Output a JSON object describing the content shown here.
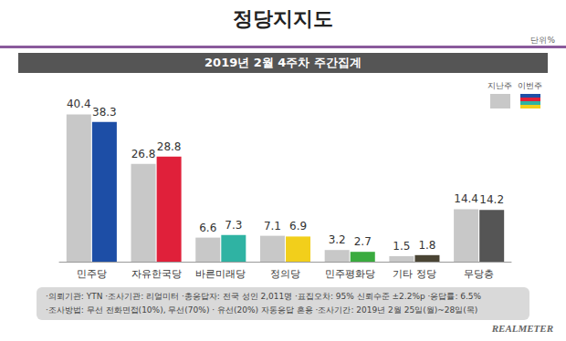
{
  "header": {
    "title": "정당지지도",
    "unit": "단위%",
    "band": "2019년 2월 4주차 주간집계"
  },
  "chart_data": {
    "type": "bar",
    "categories": [
      "민주당",
      "자유한국당",
      "바른미래당",
      "정의당",
      "민주평화당",
      "기타 정당",
      "무당층"
    ],
    "series": [
      {
        "name": "지난주",
        "color": "#c8c8c8",
        "values": [
          40.4,
          26.8,
          6.6,
          7.1,
          3.2,
          1.5,
          14.4
        ]
      },
      {
        "name": "이번주",
        "colors": [
          "#1d4ea6",
          "#e0203a",
          "#2fb3a3",
          "#f2cf1b",
          "#3aab3f",
          "#4a4434",
          "#555555"
        ],
        "values": [
          38.3,
          28.8,
          7.3,
          6.9,
          2.7,
          1.8,
          14.2
        ]
      }
    ],
    "ylim": [
      0,
      50
    ],
    "yticks": [
      0,
      50
    ],
    "grid": false,
    "data_labels": true,
    "tick_labels": "x",
    "legend": "upper right"
  },
  "footer": {
    "lines": [
      "·의뢰기관: YTN  ·조사기관: 리얼미터  ·총응답자: 전국 성인 2,011명  ·표집오차: 95% 신뢰수준 ±2.2%p  ·응답률: 6.5%",
      "·조사방법: 무선 전화면접(10%), 무선(70%) · 유선(20%) 자동응답 혼용  ·조사기간: 2019년 2월 25일(월)~28일(목)"
    ],
    "source": "REALMETER"
  }
}
